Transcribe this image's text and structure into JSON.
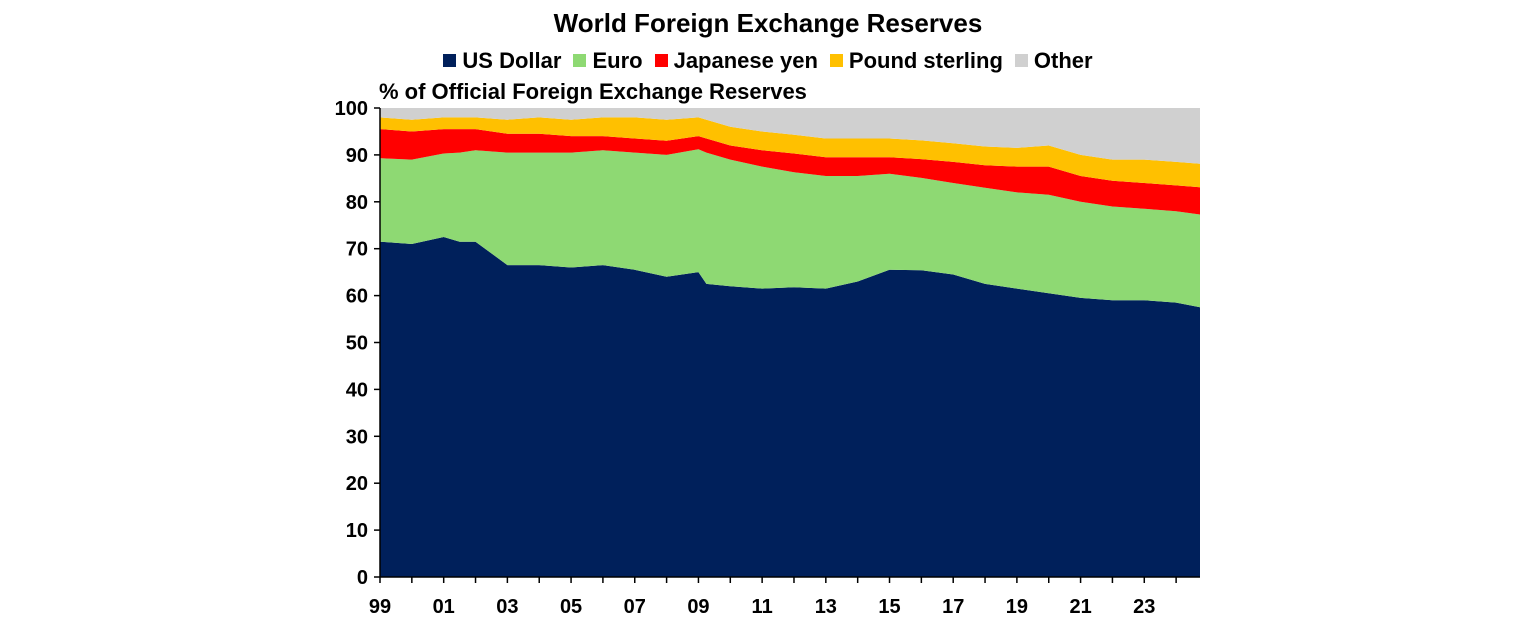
{
  "chart_data": {
    "type": "area",
    "stacked": true,
    "title": "World Foreign Exchange Reserves",
    "ylabel": "% of Official Foreign Exchange Reserves",
    "xlabel": "",
    "xlim": [
      1999.0,
      2024.75
    ],
    "ylim": [
      0,
      100
    ],
    "yticks": [
      0,
      10,
      20,
      30,
      40,
      50,
      60,
      70,
      80,
      90,
      100
    ],
    "xtick_values": [
      1999,
      2001,
      2003,
      2005,
      2007,
      2009,
      2011,
      2013,
      2015,
      2017,
      2019,
      2021,
      2023
    ],
    "xtick_labels": [
      "99",
      "01",
      "03",
      "05",
      "07",
      "09",
      "11",
      "13",
      "15",
      "17",
      "19",
      "21",
      "23"
    ],
    "grid": false,
    "legend_position": "top",
    "x": [
      1999.0,
      2000.0,
      2001.0,
      2001.5,
      2002.0,
      2003.0,
      2004.0,
      2005.0,
      2006.0,
      2007.0,
      2008.0,
      2009.0,
      2009.25,
      2010.0,
      2011.0,
      2012.0,
      2013.0,
      2014.0,
      2015.0,
      2016.0,
      2017.0,
      2018.0,
      2019.0,
      2020.0,
      2021.0,
      2022.0,
      2023.0,
      2024.0,
      2024.75
    ],
    "series": [
      {
        "name": "US Dollar",
        "color": "#00205b",
        "values": [
          71.5,
          71.0,
          72.5,
          71.5,
          71.5,
          66.5,
          66.5,
          66.0,
          66.5,
          65.5,
          64.0,
          65.0,
          62.5,
          62.0,
          61.5,
          61.8,
          61.5,
          63.0,
          65.5,
          65.4,
          64.5,
          62.5,
          61.5,
          60.5,
          59.5,
          59.0,
          59.0,
          58.5,
          57.5
        ]
      },
      {
        "name": "Euro",
        "color": "#8ed973",
        "values": [
          17.8,
          18.0,
          17.8,
          19.0,
          19.5,
          24.0,
          24.0,
          24.5,
          24.5,
          25.0,
          26.0,
          26.2,
          28.0,
          27.0,
          26.0,
          24.5,
          24.0,
          22.5,
          20.5,
          19.7,
          19.5,
          20.5,
          20.5,
          21.0,
          20.5,
          20.0,
          19.5,
          19.5,
          19.8
        ]
      },
      {
        "name": "Japanese yen",
        "color": "#ff0000",
        "values": [
          6.2,
          6.0,
          5.2,
          5.0,
          4.5,
          4.0,
          4.0,
          3.5,
          3.0,
          3.0,
          3.0,
          2.8,
          3.0,
          3.0,
          3.5,
          4.0,
          4.0,
          4.0,
          3.5,
          4.0,
          4.5,
          4.8,
          5.5,
          6.0,
          5.5,
          5.5,
          5.5,
          5.5,
          5.8
        ]
      },
      {
        "name": "Pound sterling",
        "color": "#ffc000",
        "values": [
          2.5,
          2.5,
          2.5,
          2.5,
          2.5,
          3.0,
          3.5,
          3.5,
          4.0,
          4.5,
          4.5,
          4.0,
          4.0,
          4.0,
          4.0,
          4.0,
          4.0,
          4.0,
          4.0,
          4.0,
          4.0,
          4.0,
          4.0,
          4.5,
          4.5,
          4.5,
          5.0,
          5.0,
          5.0
        ]
      },
      {
        "name": "Other",
        "color": "#d0d0d0",
        "values": [
          2.0,
          2.5,
          2.0,
          2.0,
          2.0,
          2.5,
          2.0,
          2.5,
          2.0,
          2.0,
          2.5,
          2.0,
          2.5,
          4.0,
          5.0,
          5.7,
          6.5,
          6.5,
          6.5,
          6.9,
          7.5,
          8.2,
          8.5,
          8.0,
          10.0,
          11.0,
          11.0,
          11.5,
          11.9
        ]
      }
    ]
  }
}
